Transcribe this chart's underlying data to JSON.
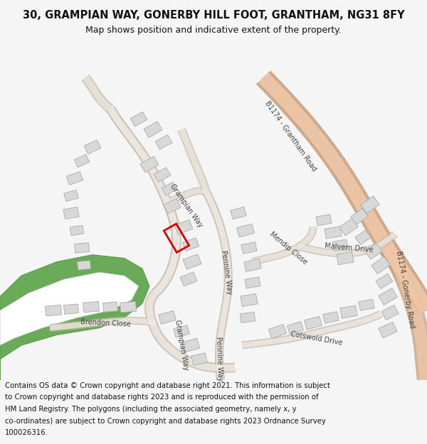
{
  "title_line1": "30, GRAMPIAN WAY, GONERBY HILL FOOT, GRANTHAM, NG31 8FY",
  "title_line2": "Map shows position and indicative extent of the property.",
  "footer_lines": [
    "Contains OS data © Crown copyright and database right 2021. This information is subject",
    "to Crown copyright and database rights 2023 and is reproduced with the permission of",
    "HM Land Registry. The polygons (including the associated geometry, namely x, y",
    "co-ordinates) are subject to Crown copyright and database rights 2023 Ordnance Survey",
    "100026316."
  ],
  "bg_color": "#f5f5f5",
  "map_bg": "#ffffff",
  "road_fill": "#f0ede8",
  "road_edge": "#c8b8a8",
  "main_road_fill": "#f0c8a8",
  "main_road_edge": "#c8a080",
  "building_fill": "#d8d8d8",
  "building_edge": "#aaaaaa",
  "green_fill": "#6aab5a",
  "green_edge": "#5a9a4a",
  "plot_color": "#cc0000",
  "label_color": "#444444"
}
